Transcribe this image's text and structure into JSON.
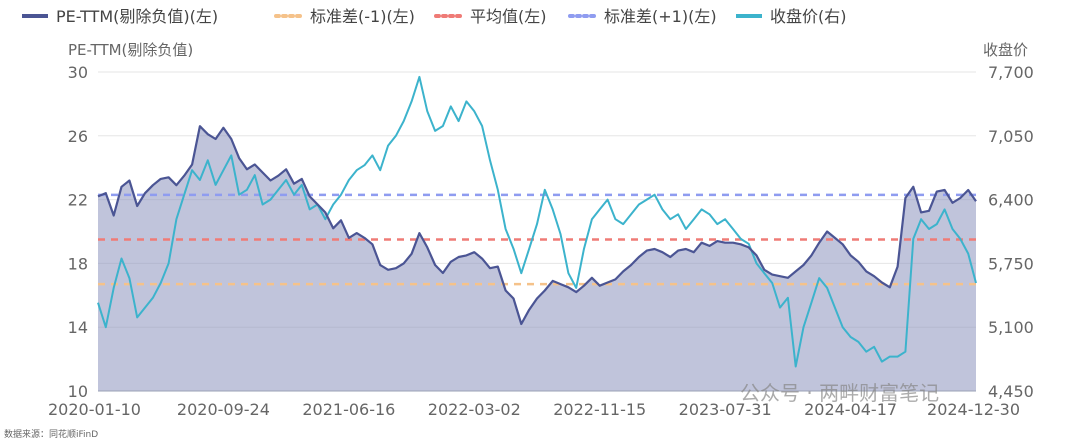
{
  "chart_data": {
    "type": "line",
    "legend": [
      {
        "key": "pe",
        "label": "PE-TTM(剔除负值)(左)",
        "color": "#4b5594",
        "style": "solid"
      },
      {
        "key": "sd_minus",
        "label": "标准差(-1)(左)",
        "color": "#f5c28a",
        "style": "dotted"
      },
      {
        "key": "mean",
        "label": "平均值(左)",
        "color": "#ef7b76",
        "style": "dotted"
      },
      {
        "key": "sd_plus",
        "label": "标准差(+1)(左)",
        "color": "#8f9cf0",
        "style": "dotted"
      },
      {
        "key": "close",
        "label": "收盘价(右)",
        "color": "#3cb3cc",
        "style": "solid"
      }
    ],
    "y_left_title": "PE-TTM(剔除负值)",
    "y_right_title": "收盘价",
    "y_left_ticks": [
      "10",
      "14",
      "18",
      "22",
      "26",
      "30"
    ],
    "y_right_ticks": [
      "4,450",
      "5,100",
      "5,750",
      "6,400",
      "7,050",
      "7,700"
    ],
    "x_ticks": [
      "2020-01-10",
      "2020-09-24",
      "2021-06-16",
      "2022-03-02",
      "2022-11-15",
      "2023-07-31",
      "2024-04-17",
      "2024-12-30"
    ],
    "y_left_range": [
      10,
      30
    ],
    "y_right_range": [
      4450,
      7700
    ],
    "reference_lines": {
      "sd_minus": 16.7,
      "mean": 19.5,
      "sd_plus": 22.3
    },
    "series": [
      {
        "name": "PE-TTM(剔除负值)(左)",
        "axis": "left",
        "values": [
          22.2,
          22.4,
          21.0,
          22.8,
          23.2,
          21.6,
          22.4,
          22.9,
          23.3,
          23.4,
          22.9,
          23.5,
          24.2,
          26.6,
          26.1,
          25.8,
          26.5,
          25.8,
          24.6,
          23.9,
          24.2,
          23.7,
          23.2,
          23.5,
          23.9,
          23.0,
          23.3,
          22.2,
          21.7,
          21.2,
          20.2,
          20.7,
          19.6,
          19.9,
          19.6,
          19.2,
          17.9,
          17.6,
          17.7,
          18.0,
          18.6,
          19.9,
          19.0,
          17.9,
          17.4,
          18.1,
          18.4,
          18.5,
          18.7,
          18.3,
          17.7,
          17.8,
          16.3,
          15.8,
          14.2,
          15.1,
          15.8,
          16.3,
          16.9,
          16.7,
          16.5,
          16.2,
          16.6,
          17.1,
          16.6,
          16.8,
          17.0,
          17.5,
          17.9,
          18.4,
          18.8,
          18.9,
          18.7,
          18.4,
          18.8,
          18.9,
          18.7,
          19.3,
          19.1,
          19.4,
          19.3,
          19.3,
          19.2,
          19.0,
          18.5,
          17.6,
          17.3,
          17.2,
          17.1,
          17.5,
          17.9,
          18.5,
          19.3,
          20.0,
          19.6,
          19.2,
          18.5,
          18.1,
          17.5,
          17.2,
          16.8,
          16.5,
          17.8,
          22.1,
          22.8,
          21.2,
          21.3,
          22.5,
          22.6,
          21.8,
          22.1,
          22.6,
          21.9
        ]
      },
      {
        "name": "收盘价(右)",
        "axis": "right",
        "values": [
          5350,
          5100,
          5500,
          5800,
          5600,
          5200,
          5300,
          5400,
          5550,
          5750,
          6200,
          6450,
          6700,
          6600,
          6800,
          6550,
          6700,
          6850,
          6450,
          6500,
          6650,
          6350,
          6400,
          6500,
          6600,
          6450,
          6550,
          6300,
          6350,
          6200,
          6350,
          6450,
          6600,
          6700,
          6750,
          6850,
          6700,
          6950,
          7050,
          7200,
          7400,
          7650,
          7300,
          7100,
          7150,
          7350,
          7200,
          7400,
          7300,
          7150,
          6800,
          6500,
          6100,
          5900,
          5650,
          5900,
          6150,
          6500,
          6300,
          6050,
          5650,
          5500,
          5900,
          6200,
          6300,
          6400,
          6200,
          6150,
          6250,
          6350,
          6400,
          6450,
          6300,
          6200,
          6250,
          6100,
          6200,
          6300,
          6250,
          6150,
          6200,
          6100,
          6000,
          5950,
          5750,
          5650,
          5550,
          5300,
          5400,
          4700,
          5100,
          5350,
          5600,
          5500,
          5300,
          5100,
          5000,
          4950,
          4850,
          4900,
          4750,
          4800,
          4800,
          4850,
          6000,
          6200,
          6100,
          6150,
          6300,
          6100,
          6000,
          5850,
          5550
        ]
      }
    ]
  },
  "source_note": "数据来源：同花顺iFinD",
  "watermark": "公众号 · 两畔财富笔记"
}
